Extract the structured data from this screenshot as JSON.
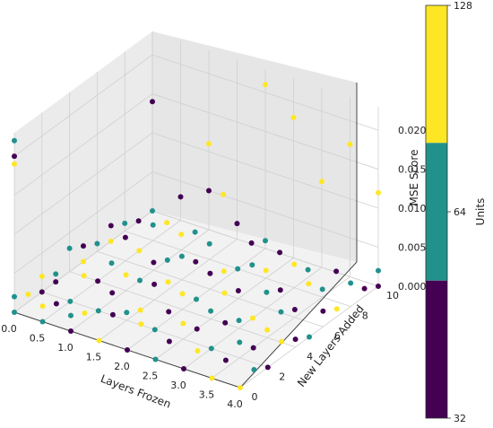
{
  "chart_data": {
    "type": "scatter3d",
    "xlabel": "Layers Frozen",
    "ylabel": "New Layers Added",
    "zlabel": "MSE Score",
    "xlim": [
      0,
      4
    ],
    "ylim": [
      0,
      10
    ],
    "zlim": [
      0,
      0.023
    ],
    "xticks": [
      "0.0",
      "0.5",
      "1.0",
      "1.5",
      "2.0",
      "2.5",
      "3.0",
      "3.5",
      "4.0"
    ],
    "yticks": [
      "0",
      "2",
      "4",
      "6",
      "8",
      "10"
    ],
    "zticks": [
      "0.000",
      "0.005",
      "0.010",
      "0.015",
      "0.020"
    ],
    "colorbar": {
      "label": "Units",
      "ticks": [
        "32",
        "64",
        "128"
      ],
      "segments": [
        {
          "label": "32",
          "color": "#440154"
        },
        {
          "label": "64",
          "color": "#21918c"
        },
        {
          "label": "128",
          "color": "#fde725"
        }
      ]
    },
    "grid": true,
    "points": [
      {
        "x": 0,
        "y": 0,
        "z": 0.02,
        "u": 32
      },
      {
        "x": 0,
        "y": 0,
        "z": 0.022,
        "u": 64
      },
      {
        "x": 0,
        "y": 0,
        "z": 0.019,
        "u": 128
      },
      {
        "x": 0,
        "y": 0,
        "z": 0.002,
        "u": 64
      },
      {
        "x": 0,
        "y": 0,
        "z": 0.0,
        "u": 64
      },
      {
        "x": 0,
        "y": 1,
        "z": 0.001,
        "u": 128
      },
      {
        "x": 0,
        "y": 2,
        "z": 0.0,
        "u": 32
      },
      {
        "x": 0,
        "y": 2,
        "z": 0.002,
        "u": 128
      },
      {
        "x": 0,
        "y": 3,
        "z": 0.0,
        "u": 32
      },
      {
        "x": 0,
        "y": 3,
        "z": 0.001,
        "u": 64
      },
      {
        "x": 0,
        "y": 4,
        "z": 0.003,
        "u": 64
      },
      {
        "x": 0,
        "y": 5,
        "z": 0.0,
        "u": 128
      },
      {
        "x": 0,
        "y": 5,
        "z": 0.002,
        "u": 32
      },
      {
        "x": 0,
        "y": 6,
        "z": 0.001,
        "u": 64
      },
      {
        "x": 0,
        "y": 7,
        "z": 0.0,
        "u": 128
      },
      {
        "x": 0,
        "y": 7,
        "z": 0.002,
        "u": 32
      },
      {
        "x": 0,
        "y": 8,
        "z": 0.001,
        "u": 64
      },
      {
        "x": 0,
        "y": 9,
        "z": 0.0,
        "u": 32
      },
      {
        "x": 0,
        "y": 10,
        "z": 0.014,
        "u": 32
      },
      {
        "x": 0,
        "y": 10,
        "z": 0.0,
        "u": 64
      },
      {
        "x": 0.5,
        "y": 0,
        "z": 0.0,
        "u": 64
      },
      {
        "x": 0.5,
        "y": 0,
        "z": 0.002,
        "u": 128
      },
      {
        "x": 0.5,
        "y": 1,
        "z": 0.001,
        "u": 32
      },
      {
        "x": 0.5,
        "y": 2,
        "z": 0.0,
        "u": 64
      },
      {
        "x": 0.5,
        "y": 3,
        "z": 0.002,
        "u": 128
      },
      {
        "x": 0.5,
        "y": 4,
        "z": 0.0,
        "u": 32
      },
      {
        "x": 0.5,
        "y": 5,
        "z": 0.001,
        "u": 64
      },
      {
        "x": 0.5,
        "y": 6,
        "z": 0.003,
        "u": 32
      },
      {
        "x": 0.5,
        "y": 7,
        "z": 0.0,
        "u": 128
      },
      {
        "x": 0.5,
        "y": 8,
        "z": 0.002,
        "u": 64
      },
      {
        "x": 0.5,
        "y": 9,
        "z": 0.001,
        "u": 128
      },
      {
        "x": 0.5,
        "y": 10,
        "z": 0.003,
        "u": 32
      },
      {
        "x": 1,
        "y": 0,
        "z": 0.0,
        "u": 32
      },
      {
        "x": 1,
        "y": 0,
        "z": 0.002,
        "u": 64
      },
      {
        "x": 1,
        "y": 1,
        "z": 0.001,
        "u": 128
      },
      {
        "x": 1,
        "y": 2,
        "z": 0.0,
        "u": 64
      },
      {
        "x": 1,
        "y": 3,
        "z": 0.001,
        "u": 32
      },
      {
        "x": 1,
        "y": 4,
        "z": 0.002,
        "u": 128
      },
      {
        "x": 1,
        "y": 5,
        "z": 0.0,
        "u": 64
      },
      {
        "x": 1,
        "y": 6,
        "z": 0.001,
        "u": 32
      },
      {
        "x": 1,
        "y": 7,
        "z": 0.0,
        "u": 64
      },
      {
        "x": 1,
        "y": 8,
        "z": 0.002,
        "u": 128
      },
      {
        "x": 1,
        "y": 9,
        "z": 0.001,
        "u": 64
      },
      {
        "x": 1,
        "y": 10,
        "z": 0.011,
        "u": 128
      },
      {
        "x": 1,
        "y": 10,
        "z": 0.005,
        "u": 32
      },
      {
        "x": 1.5,
        "y": 0,
        "z": 0.0,
        "u": 128
      },
      {
        "x": 1.5,
        "y": 1,
        "z": 0.002,
        "u": 32
      },
      {
        "x": 1.5,
        "y": 2,
        "z": 0.001,
        "u": 64
      },
      {
        "x": 1.5,
        "y": 3,
        "z": 0.0,
        "u": 128
      },
      {
        "x": 1.5,
        "y": 4,
        "z": 0.002,
        "u": 32
      },
      {
        "x": 1.5,
        "y": 5,
        "z": 0.001,
        "u": 128
      },
      {
        "x": 1.5,
        "y": 6,
        "z": 0.003,
        "u": 64
      },
      {
        "x": 1.5,
        "y": 7,
        "z": 0.001,
        "u": 32
      },
      {
        "x": 1.5,
        "y": 8,
        "z": 0.002,
        "u": 64
      },
      {
        "x": 1.5,
        "y": 9,
        "z": 0.007,
        "u": 128
      },
      {
        "x": 1.5,
        "y": 10,
        "z": 0.002,
        "u": 32
      },
      {
        "x": 2,
        "y": 0,
        "z": 0.0,
        "u": 32
      },
      {
        "x": 2,
        "y": 1,
        "z": 0.002,
        "u": 128
      },
      {
        "x": 2,
        "y": 2,
        "z": 0.0,
        "u": 64
      },
      {
        "x": 2,
        "y": 3,
        "z": 0.001,
        "u": 32
      },
      {
        "x": 2,
        "y": 4,
        "z": 0.002,
        "u": 128
      },
      {
        "x": 2,
        "y": 5,
        "z": 0.0,
        "u": 64
      },
      {
        "x": 2,
        "y": 6,
        "z": 0.002,
        "u": 32
      },
      {
        "x": 2,
        "y": 7,
        "z": 0.001,
        "u": 128
      },
      {
        "x": 2,
        "y": 8,
        "z": 0.0,
        "u": 64
      },
      {
        "x": 2,
        "y": 9,
        "z": 0.002,
        "u": 32
      },
      {
        "x": 2,
        "y": 10,
        "z": 0.021,
        "u": 128
      },
      {
        "x": 2,
        "y": 10,
        "z": 0.001,
        "u": 64
      },
      {
        "x": 2.5,
        "y": 0,
        "z": 0.0,
        "u": 64
      },
      {
        "x": 2.5,
        "y": 1,
        "z": 0.001,
        "u": 32
      },
      {
        "x": 2.5,
        "y": 2,
        "z": 0.002,
        "u": 128
      },
      {
        "x": 2.5,
        "y": 3,
        "z": 0.0,
        "u": 32
      },
      {
        "x": 2.5,
        "y": 4,
        "z": 0.001,
        "u": 64
      },
      {
        "x": 2.5,
        "y": 5,
        "z": 0.002,
        "u": 128
      },
      {
        "x": 2.5,
        "y": 6,
        "z": 0.001,
        "u": 32
      },
      {
        "x": 2.5,
        "y": 7,
        "z": 0.003,
        "u": 64
      },
      {
        "x": 2.5,
        "y": 8,
        "z": 0.001,
        "u": 128
      },
      {
        "x": 2.5,
        "y": 9,
        "z": 0.002,
        "u": 32
      },
      {
        "x": 2.5,
        "y": 10,
        "z": 0.018,
        "u": 128
      },
      {
        "x": 3,
        "y": 0,
        "z": 0.0,
        "u": 32
      },
      {
        "x": 3,
        "y": 1,
        "z": 0.001,
        "u": 128
      },
      {
        "x": 3,
        "y": 2,
        "z": 0.0,
        "u": 64
      },
      {
        "x": 3,
        "y": 3,
        "z": 0.002,
        "u": 32
      },
      {
        "x": 3,
        "y": 4,
        "z": 0.001,
        "u": 64
      },
      {
        "x": 3,
        "y": 5,
        "z": 0.0,
        "u": 128
      },
      {
        "x": 3,
        "y": 6,
        "z": 0.002,
        "u": 64
      },
      {
        "x": 3,
        "y": 7,
        "z": 0.001,
        "u": 32
      },
      {
        "x": 3,
        "y": 8,
        "z": 0.003,
        "u": 128
      },
      {
        "x": 3,
        "y": 9,
        "z": 0.001,
        "u": 64
      },
      {
        "x": 3,
        "y": 10,
        "z": 0.011,
        "u": 128
      },
      {
        "x": 3.5,
        "y": 0,
        "z": 0.0,
        "u": 128
      },
      {
        "x": 3.5,
        "y": 1,
        "z": 0.001,
        "u": 32
      },
      {
        "x": 3.5,
        "y": 2,
        "z": 0.002,
        "u": 64
      },
      {
        "x": 3.5,
        "y": 3,
        "z": 0.0,
        "u": 32
      },
      {
        "x": 3.5,
        "y": 4,
        "z": 0.001,
        "u": 128
      },
      {
        "x": 3.5,
        "y": 5,
        "z": 0.002,
        "u": 64
      },
      {
        "x": 3.5,
        "y": 6,
        "z": 0.001,
        "u": 32
      },
      {
        "x": 3.5,
        "y": 7,
        "z": 0.003,
        "u": 128
      },
      {
        "x": 3.5,
        "y": 8,
        "z": 0.001,
        "u": 64
      },
      {
        "x": 3.5,
        "y": 9,
        "z": 0.002,
        "u": 32
      },
      {
        "x": 3.5,
        "y": 10,
        "z": 0.017,
        "u": 128
      },
      {
        "x": 4,
        "y": 0,
        "z": 0.0,
        "u": 128
      },
      {
        "x": 4,
        "y": 1,
        "z": 0.001,
        "u": 64
      },
      {
        "x": 4,
        "y": 2,
        "z": 0.0,
        "u": 32
      },
      {
        "x": 4,
        "y": 3,
        "z": 0.002,
        "u": 128
      },
      {
        "x": 4,
        "y": 4,
        "z": 0.001,
        "u": 32
      },
      {
        "x": 4,
        "y": 5,
        "z": 0.0,
        "u": 64
      },
      {
        "x": 4,
        "y": 6,
        "z": 0.002,
        "u": 32
      },
      {
        "x": 4,
        "y": 7,
        "z": 0.001,
        "u": 128
      },
      {
        "x": 4,
        "y": 8,
        "z": 0.003,
        "u": 64
      },
      {
        "x": 4,
        "y": 9,
        "z": 0.001,
        "u": 32
      },
      {
        "x": 4,
        "y": 10,
        "z": 0.012,
        "u": 128
      },
      {
        "x": 4,
        "y": 10,
        "z": 0.002,
        "u": 64
      },
      {
        "x": 4,
        "y": 10,
        "z": 0.0,
        "u": 32
      }
    ]
  }
}
